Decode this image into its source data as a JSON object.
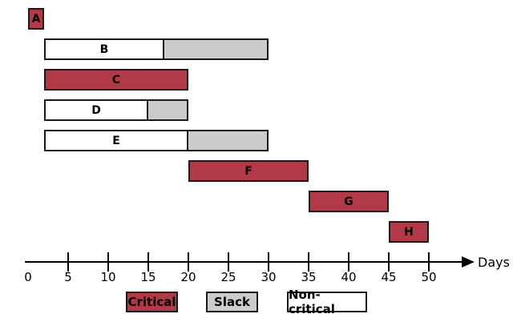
{
  "chart_data": {
    "type": "gantt",
    "title": "",
    "unit_label": "Days",
    "axis": {
      "min": 0,
      "max": 50,
      "step": 5,
      "tick_labels": [
        "0",
        "5",
        "10",
        "15",
        "20",
        "25",
        "30",
        "35",
        "40",
        "45",
        "50"
      ]
    },
    "tasks": [
      {
        "name": "A",
        "segments": [
          {
            "kind": "critical",
            "start": 0,
            "end": 2
          }
        ]
      },
      {
        "name": "B",
        "segments": [
          {
            "kind": "non-critical",
            "start": 2,
            "end": 17
          },
          {
            "kind": "slack",
            "start": 17,
            "end": 30
          }
        ]
      },
      {
        "name": "C",
        "segments": [
          {
            "kind": "critical",
            "start": 2,
            "end": 20
          }
        ]
      },
      {
        "name": "D",
        "segments": [
          {
            "kind": "non-critical",
            "start": 2,
            "end": 15
          },
          {
            "kind": "slack",
            "start": 15,
            "end": 20
          }
        ]
      },
      {
        "name": "E",
        "segments": [
          {
            "kind": "non-critical",
            "start": 2,
            "end": 20
          },
          {
            "kind": "slack",
            "start": 20,
            "end": 30
          }
        ]
      },
      {
        "name": "F",
        "segments": [
          {
            "kind": "critical",
            "start": 20,
            "end": 35
          }
        ]
      },
      {
        "name": "G",
        "segments": [
          {
            "kind": "critical",
            "start": 35,
            "end": 45
          }
        ]
      },
      {
        "name": "H",
        "segments": [
          {
            "kind": "critical",
            "start": 45,
            "end": 50
          }
        ]
      }
    ],
    "legend": [
      {
        "label": "Critical",
        "kind": "critical"
      },
      {
        "label": "Slack",
        "kind": "slack"
      },
      {
        "label": "Non-critical",
        "kind": "non-critical"
      }
    ],
    "colors": {
      "critical": "#b23a48",
      "slack": "#cbcbcb",
      "non-critical": "#ffffff",
      "border": "#1a1a1a",
      "axis": "#000000"
    }
  }
}
